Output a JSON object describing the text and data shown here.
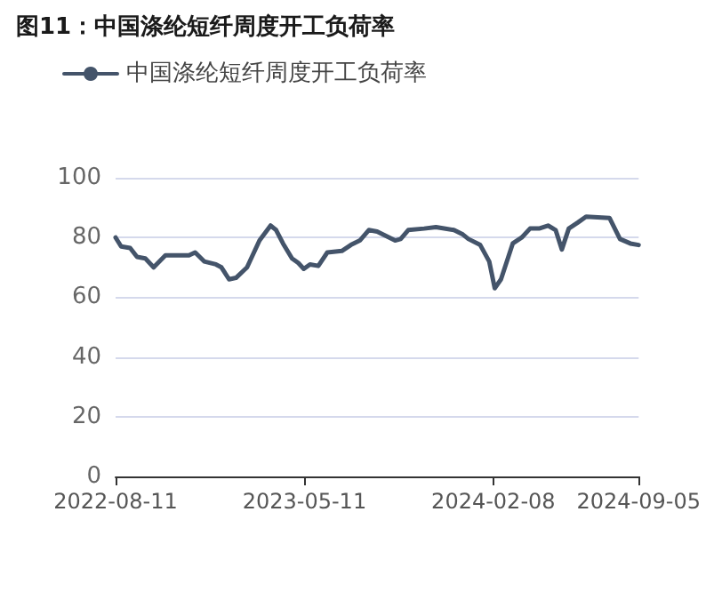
{
  "chart_data": {
    "type": "line",
    "title": "图11：中国涤纶短纤周度开工负荷率",
    "legend": "top left",
    "marker": "none",
    "grid": "y",
    "x": [
      "2022-08-11",
      "2022-08-19",
      "2022-09-01",
      "2022-09-11",
      "2022-09-23",
      "2022-10-05",
      "2022-10-22",
      "2022-11-08",
      "2022-11-25",
      "2022-12-04",
      "2022-12-17",
      "2023-01-03",
      "2023-01-11",
      "2023-01-22",
      "2023-02-01",
      "2023-02-17",
      "2023-03-07",
      "2023-03-23",
      "2023-03-31",
      "2023-04-10",
      "2023-04-23",
      "2023-05-02",
      "2023-05-10",
      "2023-05-19",
      "2023-05-31",
      "2023-06-13",
      "2023-07-04",
      "2023-07-17",
      "2023-07-30",
      "2023-08-12",
      "2023-08-24",
      "2023-09-19",
      "2023-09-27",
      "2023-10-08",
      "2023-10-31",
      "2023-11-17",
      "2023-12-13",
      "2023-12-26",
      "2024-01-03",
      "2024-01-20",
      "2024-02-02",
      "2024-02-10",
      "2024-02-19",
      "2024-03-07",
      "2024-03-20",
      "2024-04-01",
      "2024-04-14",
      "2024-04-27",
      "2024-05-08",
      "2024-05-17",
      "2024-05-27",
      "2024-06-09",
      "2024-06-21",
      "2024-07-25",
      "2024-08-09",
      "2024-08-24",
      "2024-09-05"
    ],
    "series": [
      {
        "name": "中国涤纶短纤周度开工负荷率",
        "color": "#44546a",
        "values": [
          80,
          77,
          76.5,
          73.5,
          73,
          70,
          74,
          74,
          74,
          75,
          72,
          71,
          70,
          66,
          66.5,
          70,
          79,
          84,
          82.5,
          78,
          73,
          71.5,
          69.5,
          71,
          70.5,
          75,
          75.5,
          77.5,
          79,
          82.5,
          82,
          79,
          79.5,
          82.5,
          83,
          83.5,
          82.5,
          81,
          79.5,
          77.5,
          72,
          63,
          66,
          78,
          80,
          83,
          83,
          84,
          82.5,
          76,
          83,
          85,
          87,
          86.5,
          79.5,
          78,
          77.5
        ]
      }
    ],
    "xlim": [
      "2022-08-11",
      "2024-09-05"
    ],
    "xticks": [
      "2022-08-11",
      "2023-05-11",
      "2024-02-08",
      "2024-09-05"
    ],
    "ylim": [
      0,
      100
    ],
    "yticks": [
      0,
      20,
      40,
      60,
      80,
      100
    ]
  }
}
